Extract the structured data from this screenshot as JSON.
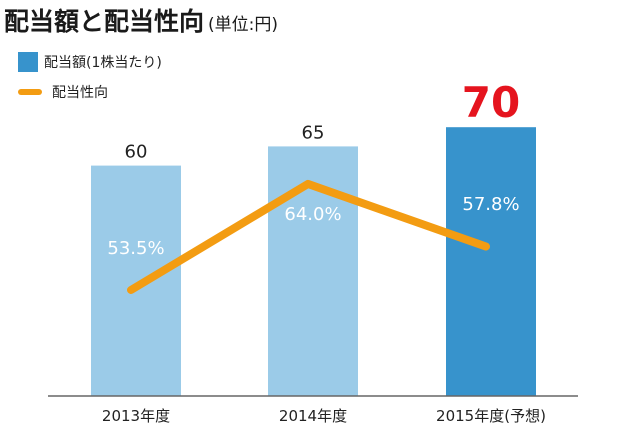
{
  "title": {
    "main": "配当額と配当性向",
    "unit": "(単位:円)"
  },
  "colors": {
    "bar_actual": "#9bcbe8",
    "bar_forecast": "#3793cc",
    "line": "#f39c12",
    "forecast_label": "#e5141e",
    "axis": "#666666"
  },
  "chart_data": {
    "type": "bar",
    "categories": [
      "2013年度",
      "2014年度",
      "2015年度(予想)"
    ],
    "series": [
      {
        "name": "配当額(1株当たり)",
        "type": "bar",
        "values": [
          60,
          65,
          70
        ],
        "labels": [
          "60",
          "65",
          "70"
        ]
      },
      {
        "name": "配当性向",
        "type": "line",
        "values": [
          53.5,
          64.0,
          57.8
        ],
        "labels": [
          "53.5%",
          "64.0%",
          "57.8%"
        ]
      }
    ],
    "title": "配当額と配当性向",
    "ylabel": "",
    "xlabel": "",
    "legend_position": "top-left",
    "grid": false
  }
}
